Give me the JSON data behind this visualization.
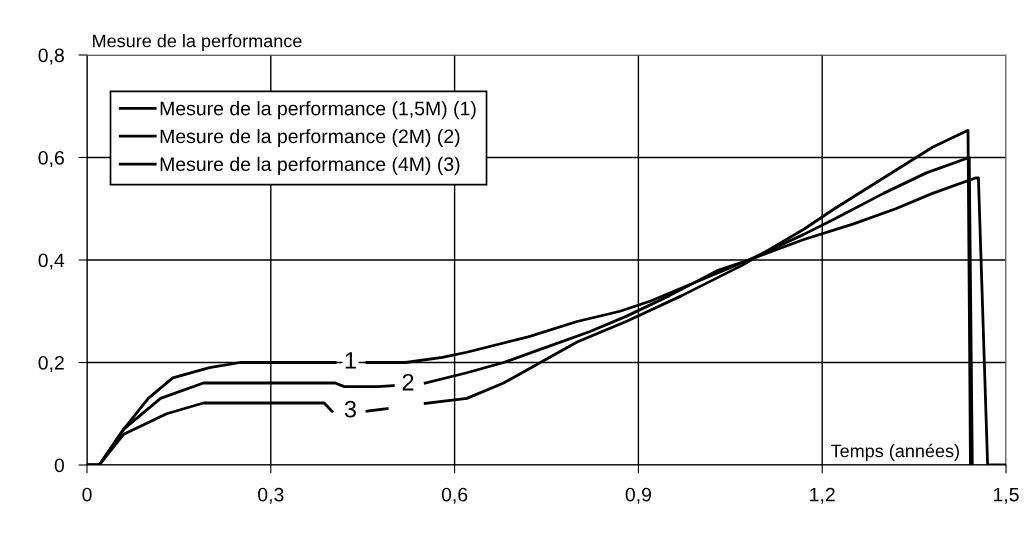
{
  "chart_data": {
    "type": "line",
    "xlabel": "Temps (années)",
    "ylabel": "Mesure de la performance",
    "xlim": [
      0,
      1.5
    ],
    "ylim": [
      0,
      0.8
    ],
    "xticks": [
      0,
      {
        "value": 0.3,
        "label": "0,3"
      },
      {
        "value": 0.6,
        "label": "0,6"
      },
      {
        "value": 0.9,
        "label": "0,9"
      },
      {
        "value": 1.2,
        "label": "1,2"
      },
      {
        "value": 1.5,
        "label": "1,5"
      }
    ],
    "yticks": [
      0,
      {
        "value": 0.2,
        "label": "0,2"
      },
      {
        "value": 0.4,
        "label": "0,4"
      },
      {
        "value": 0.6,
        "label": "0,6"
      },
      {
        "value": 0.8,
        "label": "0,8"
      }
    ],
    "grid": true,
    "legend": "top left",
    "marker": "none",
    "line_style": "solid",
    "series": [
      {
        "name": "Mesure de la performance (1,5M) (1)",
        "color": "#000000",
        "x": [
          0,
          0.02,
          0.06,
          0.1,
          0.14,
          0.2,
          0.25,
          0.3,
          0.405,
          0.43,
          0.457,
          0.52,
          0.58,
          0.62,
          0.72,
          0.8,
          0.87,
          0.92,
          1.0,
          1.08,
          1.17,
          1.25,
          1.32,
          1.38,
          1.45,
          1.455,
          1.47,
          1.5
        ],
        "values": [
          0,
          0,
          0.07,
          0.13,
          0.17,
          0.19,
          0.2,
          0.2,
          0.2,
          null,
          0.2,
          0.2,
          0.21,
          0.22,
          0.25,
          0.28,
          0.3,
          0.32,
          0.36,
          0.4,
          0.44,
          0.47,
          0.5,
          0.53,
          0.56,
          0.56,
          0,
          0
        ]
      },
      {
        "name": "Mesure de la performance (2M) (2)",
        "color": "#000000",
        "x": [
          0,
          0.02,
          0.06,
          0.12,
          0.19,
          0.3,
          0.405,
          0.42,
          0.475,
          0.5,
          0.524,
          0.552,
          0.62,
          0.68,
          0.75,
          0.82,
          0.88,
          0.95,
          1.03,
          1.08,
          1.17,
          1.22,
          1.3,
          1.37,
          1.44,
          1.445
        ],
        "values": [
          0,
          0,
          0.07,
          0.13,
          0.16,
          0.16,
          0.16,
          0.153,
          0.153,
          0.155,
          null,
          0.16,
          0.18,
          0.2,
          0.23,
          0.26,
          0.29,
          0.33,
          0.38,
          0.4,
          0.45,
          0.48,
          0.53,
          0.57,
          0.6,
          0
        ]
      },
      {
        "name": "Mesure de la performance (4M) (3)",
        "color": "#000000",
        "x": [
          0,
          0.02,
          0.06,
          0.13,
          0.19,
          0.3,
          0.387,
          0.4,
          0.43,
          0.457,
          0.49,
          0.52,
          0.552,
          0.62,
          0.68,
          0.74,
          0.8,
          0.88,
          0.97,
          1.07,
          1.17,
          1.22,
          1.3,
          1.38,
          1.438,
          1.442
        ],
        "values": [
          0,
          0,
          0.06,
          0.1,
          0.121,
          0.121,
          0.121,
          0.105,
          null,
          0.105,
          0.11,
          null,
          0.12,
          0.13,
          0.16,
          0.2,
          0.24,
          0.28,
          0.33,
          0.39,
          0.46,
          0.5,
          0.56,
          0.62,
          0.653,
          0
        ]
      }
    ],
    "annotations": [
      "1",
      "2",
      "3"
    ]
  }
}
